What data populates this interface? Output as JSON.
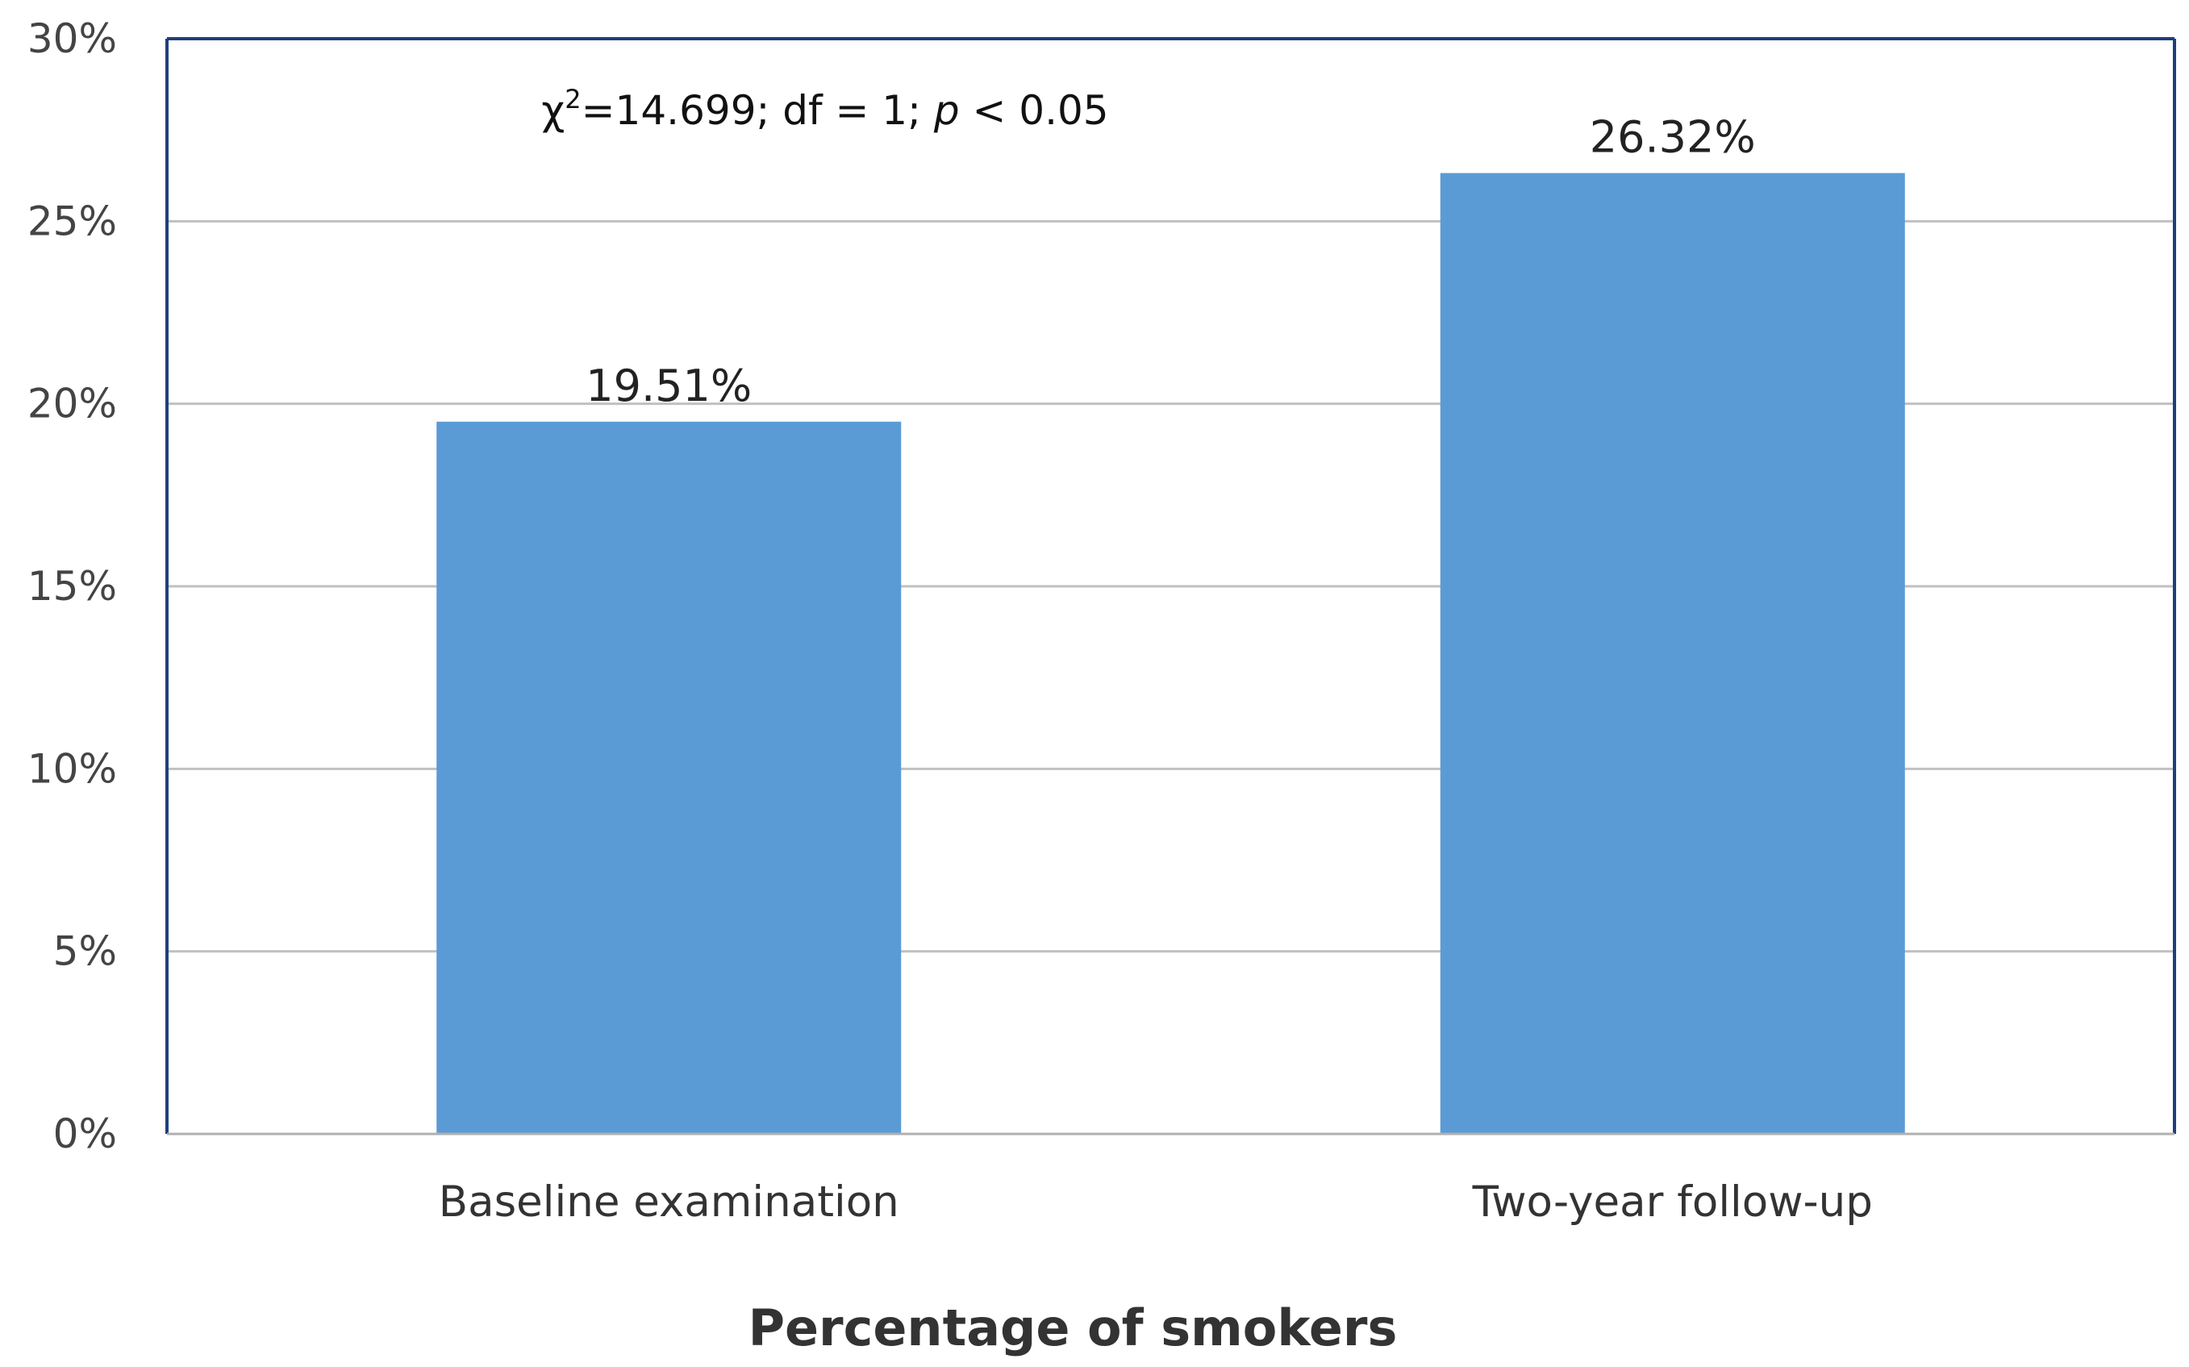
{
  "chart_data": {
    "type": "bar",
    "title": "",
    "xlabel": "Percentage of smokers",
    "ylabel": "",
    "categories": [
      "Baseline examination",
      "Two-year follow-up"
    ],
    "values": [
      19.51,
      26.32
    ],
    "value_labels": [
      "19.51%",
      "26.32%"
    ],
    "ylim": [
      0,
      30
    ],
    "yticks": [
      0,
      5,
      10,
      15,
      20,
      25,
      30
    ],
    "ytick_labels": [
      "0%",
      "5%",
      "10%",
      "15%",
      "20%",
      "25%",
      "30%"
    ],
    "grid": true,
    "legend": "none",
    "annotation": {
      "chi": "χ",
      "sup": "2",
      "stat": "=14.699; df = 1; ",
      "p": "p",
      "rest": " < 0.05"
    },
    "colors": {
      "bar": "#5b9bd5",
      "axis": "#1f3f7a",
      "grid": "#c0c0c0"
    }
  }
}
